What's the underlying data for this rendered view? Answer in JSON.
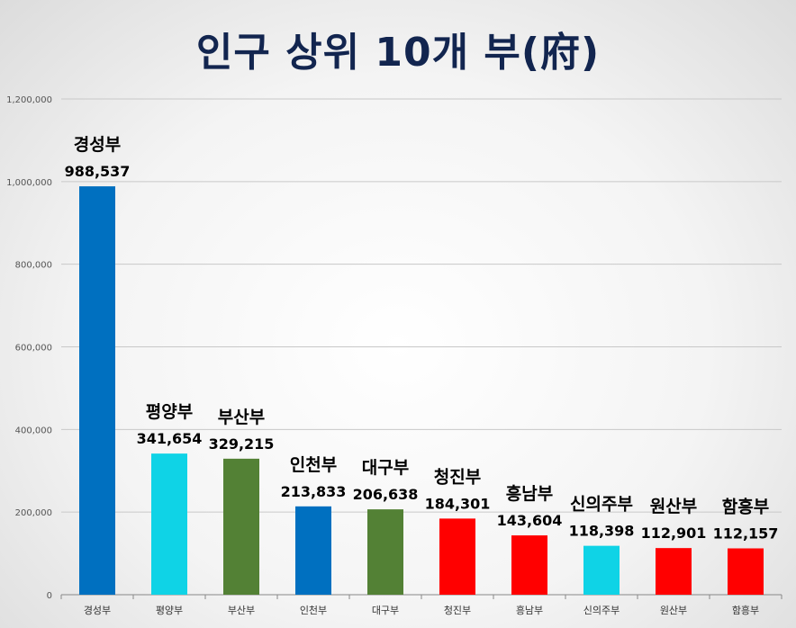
{
  "chart_data": {
    "type": "bar",
    "title": "인구 상위 10개 부(府)",
    "xlabel": "",
    "ylabel": "",
    "ylim": [
      0,
      1200000
    ],
    "yticks": [
      "0",
      "200,000",
      "400,000",
      "600,000",
      "800,000",
      "1,000,000",
      "1,200,000"
    ],
    "ytick_values": [
      0,
      200000,
      400000,
      600000,
      800000,
      1000000,
      1200000
    ],
    "grid": true,
    "legend": "none",
    "categories": [
      "경성부",
      "평양부",
      "부산부",
      "인천부",
      "대구부",
      "청진부",
      "흥남부",
      "신의주부",
      "원산부",
      "함흥부"
    ],
    "values": [
      988537,
      341654,
      329215,
      213833,
      206638,
      184301,
      143604,
      118398,
      112901,
      112157
    ],
    "value_labels": [
      "988,537",
      "341,654",
      "329,215",
      "213,833",
      "206,638",
      "184,301",
      "143,604",
      "118,398",
      "112,901",
      "112,157"
    ],
    "colors": [
      "#0070c0",
      "#0fd3e6",
      "#538135",
      "#0070c0",
      "#538135",
      "#ff0000",
      "#ff0000",
      "#0fd3e6",
      "#ff0000",
      "#ff0000"
    ]
  }
}
